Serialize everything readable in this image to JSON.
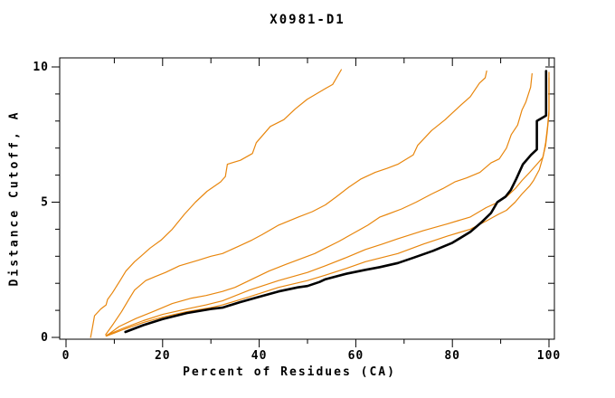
{
  "window": {
    "background": "#ffffff"
  },
  "chart_data": {
    "type": "line",
    "title": "X0981-D1",
    "xlabel": "Percent of Residues (CA)",
    "ylabel": "Distance Cutoff, A",
    "xlim": [
      0,
      100
    ],
    "ylim": [
      0,
      10
    ],
    "x_major_ticks": [
      0,
      20,
      40,
      60,
      80,
      100
    ],
    "x_minor_ticks": [
      10,
      30,
      50,
      70,
      90
    ],
    "y_major_ticks": [
      0,
      5,
      10
    ],
    "y_minor_ticks": [
      1,
      2,
      3,
      4,
      6,
      7,
      8,
      9
    ],
    "grid": false,
    "legend_position": "none",
    "axis_color": "#000000",
    "orange_color": "#e8860d",
    "black_color": "#000000",
    "series": [
      {
        "name": "orange-model-1",
        "color": "#e8860d",
        "width": 1.2,
        "points": [
          [
            5.1,
            0.0
          ],
          [
            5.5,
            0.4
          ],
          [
            5.9,
            0.8
          ],
          [
            7.2,
            1.05
          ],
          [
            8.3,
            1.2
          ],
          [
            8.6,
            1.4
          ],
          [
            9.6,
            1.65
          ],
          [
            11.2,
            2.1
          ],
          [
            12.4,
            2.45
          ],
          [
            14.2,
            2.8
          ],
          [
            15.5,
            3.0
          ],
          [
            17.4,
            3.3
          ],
          [
            19.7,
            3.6
          ],
          [
            22.0,
            4.0
          ],
          [
            24.5,
            4.55
          ],
          [
            26.8,
            5.0
          ],
          [
            29.2,
            5.4
          ],
          [
            32.0,
            5.75
          ],
          [
            33.0,
            5.95
          ],
          [
            33.4,
            6.4
          ],
          [
            36.1,
            6.55
          ],
          [
            38.6,
            6.8
          ],
          [
            39.4,
            7.2
          ],
          [
            42.3,
            7.8
          ],
          [
            45.1,
            8.05
          ],
          [
            47.5,
            8.45
          ],
          [
            49.9,
            8.8
          ],
          [
            53.7,
            9.2
          ],
          [
            55.2,
            9.35
          ],
          [
            57.0,
            9.9
          ]
        ]
      },
      {
        "name": "orange-model-2",
        "color": "#e8860d",
        "width": 1.2,
        "points": [
          [
            8.2,
            0.1
          ],
          [
            9.8,
            0.5
          ],
          [
            11.5,
            0.95
          ],
          [
            13.0,
            1.4
          ],
          [
            14.2,
            1.75
          ],
          [
            16.5,
            2.1
          ],
          [
            18.5,
            2.25
          ],
          [
            20.6,
            2.4
          ],
          [
            23.5,
            2.65
          ],
          [
            27.3,
            2.85
          ],
          [
            30.0,
            3.0
          ],
          [
            32.4,
            3.1
          ],
          [
            35.5,
            3.35
          ],
          [
            38.5,
            3.6
          ],
          [
            40.6,
            3.8
          ],
          [
            44.0,
            4.15
          ],
          [
            48.1,
            4.45
          ],
          [
            51.0,
            4.65
          ],
          [
            53.7,
            4.9
          ],
          [
            56.0,
            5.2
          ],
          [
            58.5,
            5.55
          ],
          [
            61.0,
            5.85
          ],
          [
            64.0,
            6.1
          ],
          [
            66.5,
            6.25
          ],
          [
            68.7,
            6.4
          ],
          [
            71.9,
            6.75
          ],
          [
            72.8,
            7.1
          ],
          [
            75.7,
            7.65
          ],
          [
            78.5,
            8.05
          ],
          [
            81.5,
            8.55
          ],
          [
            83.7,
            8.9
          ],
          [
            85.6,
            9.4
          ],
          [
            86.8,
            9.6
          ],
          [
            87.1,
            9.85
          ]
        ]
      },
      {
        "name": "orange-model-3",
        "color": "#e8860d",
        "width": 1.2,
        "points": [
          [
            8.3,
            0.05
          ],
          [
            11.0,
            0.4
          ],
          [
            14.5,
            0.7
          ],
          [
            18.0,
            0.95
          ],
          [
            22.0,
            1.25
          ],
          [
            26.0,
            1.45
          ],
          [
            29.0,
            1.55
          ],
          [
            32.4,
            1.7
          ],
          [
            35.0,
            1.85
          ],
          [
            38.5,
            2.15
          ],
          [
            42.0,
            2.45
          ],
          [
            45.5,
            2.7
          ],
          [
            48.5,
            2.9
          ],
          [
            51.5,
            3.1
          ],
          [
            53.7,
            3.3
          ],
          [
            56.5,
            3.55
          ],
          [
            59.5,
            3.85
          ],
          [
            62.5,
            4.15
          ],
          [
            65.0,
            4.45
          ],
          [
            66.5,
            4.55
          ],
          [
            69.5,
            4.75
          ],
          [
            72.5,
            5.0
          ],
          [
            75.7,
            5.3
          ],
          [
            78.0,
            5.5
          ],
          [
            80.5,
            5.75
          ],
          [
            83.0,
            5.9
          ],
          [
            85.7,
            6.1
          ],
          [
            88.0,
            6.45
          ],
          [
            89.7,
            6.6
          ],
          [
            91.2,
            7.0
          ],
          [
            92.2,
            7.5
          ],
          [
            93.5,
            7.85
          ],
          [
            94.4,
            8.4
          ],
          [
            95.2,
            8.7
          ],
          [
            96.2,
            9.25
          ],
          [
            96.5,
            9.75
          ]
        ]
      },
      {
        "name": "orange-model-4",
        "color": "#e8860d",
        "width": 1.2,
        "points": [
          [
            8.4,
            0.08
          ],
          [
            12.0,
            0.35
          ],
          [
            16.0,
            0.62
          ],
          [
            20.0,
            0.85
          ],
          [
            25.0,
            1.05
          ],
          [
            29.0,
            1.2
          ],
          [
            32.4,
            1.35
          ],
          [
            38.0,
            1.75
          ],
          [
            44.0,
            2.1
          ],
          [
            50.0,
            2.4
          ],
          [
            53.7,
            2.65
          ],
          [
            58.0,
            2.95
          ],
          [
            62.0,
            3.25
          ],
          [
            65.5,
            3.45
          ],
          [
            68.7,
            3.65
          ],
          [
            74.0,
            3.95
          ],
          [
            79.0,
            4.2
          ],
          [
            83.7,
            4.45
          ],
          [
            87.0,
            4.8
          ],
          [
            89.5,
            5.0
          ],
          [
            91.2,
            5.2
          ],
          [
            93.0,
            5.5
          ],
          [
            94.4,
            5.8
          ],
          [
            96.0,
            6.1
          ],
          [
            97.5,
            6.4
          ],
          [
            98.7,
            6.65
          ],
          [
            99.3,
            7.1
          ],
          [
            99.6,
            7.55
          ],
          [
            100,
            8.25
          ],
          [
            100,
            9.0
          ],
          [
            100,
            9.8
          ]
        ]
      },
      {
        "name": "orange-model-5",
        "color": "#e8860d",
        "width": 1.2,
        "points": [
          [
            8.4,
            0.05
          ],
          [
            12.0,
            0.3
          ],
          [
            16.0,
            0.55
          ],
          [
            20.0,
            0.75
          ],
          [
            25.0,
            0.95
          ],
          [
            30.0,
            1.1
          ],
          [
            32.4,
            1.2
          ],
          [
            38.0,
            1.5
          ],
          [
            44.0,
            1.85
          ],
          [
            50.0,
            2.1
          ],
          [
            53.7,
            2.3
          ],
          [
            58.0,
            2.55
          ],
          [
            62.0,
            2.8
          ],
          [
            68.7,
            3.1
          ],
          [
            74.0,
            3.45
          ],
          [
            79.0,
            3.75
          ],
          [
            83.7,
            4.0
          ],
          [
            87.0,
            4.3
          ],
          [
            89.5,
            4.55
          ],
          [
            91.2,
            4.7
          ],
          [
            93.0,
            5.0
          ],
          [
            94.4,
            5.3
          ],
          [
            96.0,
            5.6
          ],
          [
            96.8,
            5.8
          ],
          [
            98.0,
            6.2
          ],
          [
            98.8,
            6.7
          ],
          [
            99.3,
            7.2
          ],
          [
            99.7,
            7.8
          ],
          [
            100,
            8.4
          ],
          [
            100,
            9.1
          ],
          [
            100,
            9.6
          ]
        ]
      },
      {
        "name": "black-model",
        "color": "#000000",
        "width": 2.6,
        "points": [
          [
            12.3,
            0.2
          ],
          [
            16.0,
            0.45
          ],
          [
            20.0,
            0.68
          ],
          [
            25.0,
            0.9
          ],
          [
            30.0,
            1.05
          ],
          [
            32.4,
            1.1
          ],
          [
            36.0,
            1.3
          ],
          [
            40.0,
            1.5
          ],
          [
            44.0,
            1.7
          ],
          [
            48.0,
            1.85
          ],
          [
            50.0,
            1.9
          ],
          [
            52.5,
            2.05
          ],
          [
            53.7,
            2.15
          ],
          [
            58.0,
            2.35
          ],
          [
            62.0,
            2.5
          ],
          [
            65.0,
            2.6
          ],
          [
            68.7,
            2.75
          ],
          [
            72.0,
            2.95
          ],
          [
            76.0,
            3.2
          ],
          [
            80.0,
            3.5
          ],
          [
            83.7,
            3.9
          ],
          [
            86.0,
            4.25
          ],
          [
            88.0,
            4.6
          ],
          [
            89.3,
            5.0
          ],
          [
            91.0,
            5.2
          ],
          [
            92.1,
            5.45
          ],
          [
            93.2,
            5.85
          ],
          [
            94.6,
            6.4
          ],
          [
            96.3,
            6.75
          ],
          [
            97.5,
            6.95
          ],
          [
            97.5,
            8.0
          ],
          [
            99.4,
            8.2
          ],
          [
            99.4,
            9.85
          ]
        ]
      }
    ]
  }
}
